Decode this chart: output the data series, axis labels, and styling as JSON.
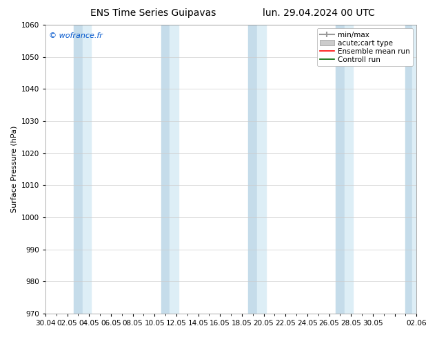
{
  "title_left": "ENS Time Series Guipavas",
  "title_right": "lun. 29.04.2024 00 UTC",
  "ylabel": "Surface Pressure (hPa)",
  "ylim": [
    970,
    1060
  ],
  "yticks": [
    970,
    980,
    990,
    1000,
    1010,
    1020,
    1030,
    1040,
    1050,
    1060
  ],
  "xtick_labels": [
    "30.04",
    "02.05",
    "04.05",
    "06.05",
    "08.05",
    "10.05",
    "12.05",
    "14.05",
    "16.05",
    "18.05",
    "20.05",
    "22.05",
    "24.05",
    "26.05",
    "28.05",
    "30.05",
    "",
    "02.06"
  ],
  "copyright": "© wofrance.fr",
  "legend_entries": [
    "min/max",
    "acute;cart type",
    "Ensemble mean run",
    "Controll run"
  ],
  "bg_color": "#ffffff",
  "plot_bg_color": "#ffffff",
  "band_color_dark": "#c5dcea",
  "band_color_light": "#ddeef6",
  "title_fontsize": 10,
  "axis_fontsize": 8,
  "tick_fontsize": 7.5,
  "legend_fontsize": 7.5
}
